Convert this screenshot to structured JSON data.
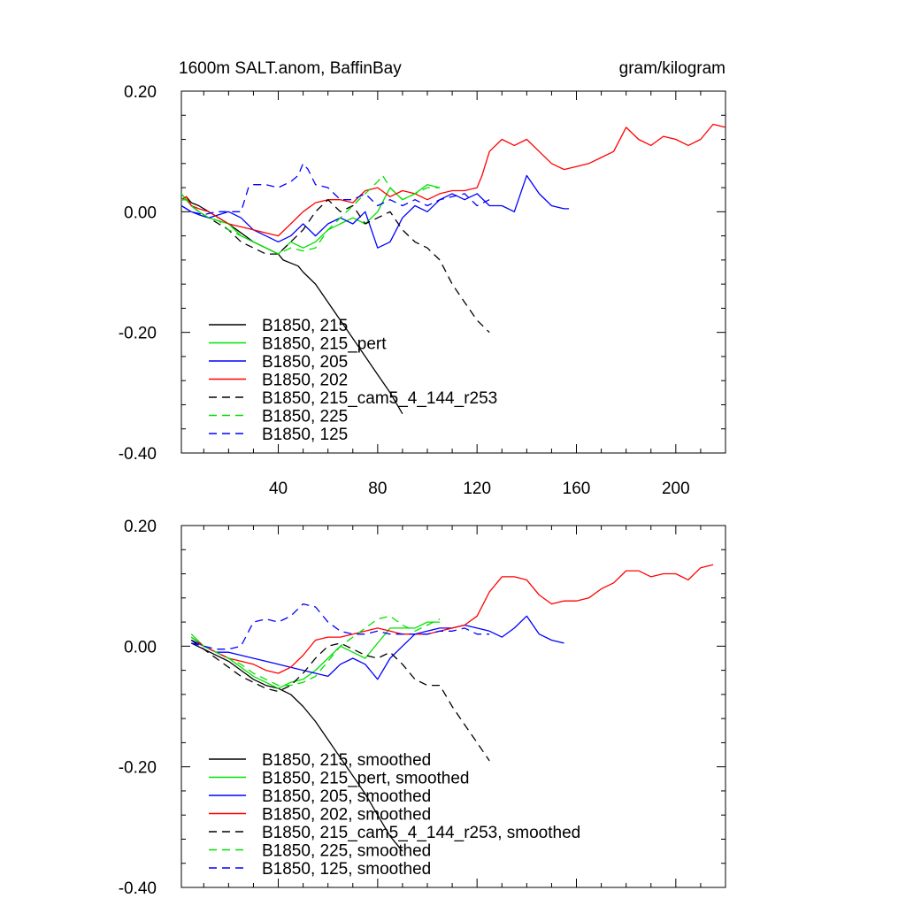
{
  "chart_data": [
    {
      "type": "line",
      "title_left": "1600m SALT.anom, BaffinBay",
      "title_right": "gram/kilogram",
      "xlabel": "",
      "ylabel": "",
      "xlim": [
        1,
        220
      ],
      "ylim": [
        -0.4,
        0.2
      ],
      "xticks": [
        40,
        80,
        120,
        160,
        200
      ],
      "xtick_labels": [
        "40",
        "80",
        "120",
        "160",
        "200"
      ],
      "yticks": [
        0.2,
        0.0,
        -0.2,
        -0.4
      ],
      "ytick_labels": [
        "0.20",
        "0.00",
        "-0.20",
        "-0.40"
      ],
      "series": [
        {
          "name": "B1850, 215",
          "color": "#000000",
          "dash": "solid",
          "x": [
            1,
            3,
            5,
            8,
            12,
            16,
            20,
            25,
            30,
            35,
            40,
            42,
            45,
            48,
            50,
            55,
            60,
            65,
            70,
            75,
            80,
            85,
            90
          ],
          "y": [
            0.02,
            0.025,
            0.015,
            0.01,
            0.0,
            -0.01,
            -0.02,
            -0.035,
            -0.05,
            -0.06,
            -0.07,
            -0.08,
            -0.085,
            -0.09,
            -0.1,
            -0.12,
            -0.15,
            -0.18,
            -0.21,
            -0.24,
            -0.27,
            -0.3,
            -0.335
          ]
        },
        {
          "name": "B1850, 215_pert",
          "color": "#00e000",
          "dash": "solid",
          "x": [
            1,
            3,
            5,
            8,
            12,
            16,
            20,
            25,
            30,
            35,
            40,
            45,
            50,
            55,
            60,
            65,
            70,
            75,
            80,
            85,
            90,
            95,
            100,
            105
          ],
          "y": [
            0.03,
            0.02,
            0.01,
            0.0,
            -0.01,
            -0.015,
            -0.02,
            -0.04,
            -0.05,
            -0.06,
            -0.07,
            -0.05,
            -0.06,
            -0.05,
            -0.03,
            -0.02,
            -0.01,
            -0.02,
            0.0,
            0.04,
            0.02,
            0.03,
            0.045,
            0.04
          ]
        },
        {
          "name": "B1850, 205",
          "color": "#0000ff",
          "dash": "solid",
          "x": [
            1,
            3,
            5,
            8,
            12,
            16,
            20,
            25,
            30,
            35,
            40,
            45,
            50,
            55,
            60,
            65,
            70,
            75,
            80,
            85,
            90,
            95,
            100,
            105,
            110,
            115,
            120,
            125,
            130,
            135,
            140,
            145,
            150,
            155,
            157
          ],
          "y": [
            0.01,
            0.005,
            0.0,
            -0.005,
            -0.01,
            -0.005,
            0.0,
            -0.01,
            -0.03,
            -0.04,
            -0.05,
            -0.04,
            -0.02,
            -0.04,
            -0.02,
            -0.01,
            -0.02,
            0.0,
            -0.06,
            -0.05,
            -0.01,
            0.01,
            0.0,
            0.02,
            0.03,
            0.02,
            0.03,
            0.01,
            0.01,
            0.0,
            0.06,
            0.03,
            0.01,
            0.005,
            0.005
          ]
        },
        {
          "name": "B1850, 202",
          "color": "#ff0000",
          "dash": "solid",
          "x": [
            1,
            3,
            5,
            8,
            12,
            16,
            20,
            25,
            30,
            35,
            40,
            45,
            50,
            55,
            60,
            65,
            70,
            75,
            80,
            85,
            90,
            95,
            100,
            105,
            110,
            115,
            120,
            122,
            125,
            130,
            135,
            140,
            145,
            150,
            155,
            160,
            165,
            170,
            175,
            180,
            185,
            190,
            195,
            200,
            205,
            210,
            215,
            220
          ],
          "y": [
            0.02,
            0.025,
            0.01,
            0.005,
            0.0,
            -0.01,
            -0.02,
            -0.025,
            -0.03,
            -0.035,
            -0.04,
            -0.02,
            0.0,
            0.015,
            0.02,
            0.02,
            0.015,
            0.035,
            0.04,
            0.025,
            0.035,
            0.03,
            0.02,
            0.03,
            0.035,
            0.035,
            0.04,
            0.06,
            0.1,
            0.12,
            0.11,
            0.12,
            0.1,
            0.08,
            0.07,
            0.075,
            0.08,
            0.09,
            0.1,
            0.14,
            0.12,
            0.11,
            0.125,
            0.12,
            0.11,
            0.12,
            0.145,
            0.14
          ]
        },
        {
          "name": "B1850, 215_cam5_4_144_r253",
          "color": "#000000",
          "dash": "dashed",
          "x": [
            1,
            3,
            5,
            8,
            12,
            16,
            20,
            25,
            30,
            35,
            40,
            45,
            50,
            55,
            60,
            65,
            70,
            75,
            80,
            85,
            90,
            95,
            100,
            105,
            110,
            115,
            120,
            125
          ],
          "y": [
            0.02,
            0.02,
            0.01,
            0.0,
            -0.01,
            -0.02,
            -0.03,
            -0.05,
            -0.06,
            -0.07,
            -0.07,
            -0.05,
            -0.03,
            0.0,
            0.02,
            0.0,
            0.01,
            -0.02,
            -0.01,
            0.0,
            -0.03,
            -0.05,
            -0.06,
            -0.08,
            -0.12,
            -0.15,
            -0.18,
            -0.2
          ]
        },
        {
          "name": "B1850, 225",
          "color": "#00e000",
          "dash": "dashed",
          "x": [
            1,
            3,
            5,
            8,
            12,
            16,
            20,
            25,
            30,
            35,
            40,
            45,
            50,
            55,
            60,
            65,
            70,
            75,
            80,
            82,
            85,
            90,
            95,
            100,
            105
          ],
          "y": [
            0.02,
            0.02,
            0.01,
            0.0,
            -0.01,
            -0.015,
            -0.03,
            -0.04,
            -0.05,
            -0.06,
            -0.07,
            -0.06,
            -0.065,
            -0.06,
            -0.03,
            -0.01,
            0.01,
            0.03,
            0.05,
            0.06,
            0.04,
            0.02,
            0.03,
            0.04,
            0.04
          ]
        },
        {
          "name": "B1850, 125",
          "color": "#0000ff",
          "dash": "dashed",
          "x": [
            1,
            5,
            10,
            15,
            20,
            25,
            28,
            30,
            35,
            40,
            45,
            48,
            50,
            52,
            55,
            60,
            65,
            70,
            75,
            80,
            85,
            90,
            95,
            100,
            105,
            110,
            115,
            120,
            125
          ],
          "y": [
            0.01,
            0.0,
            -0.005,
            0.0,
            0.0,
            0.0,
            0.04,
            0.045,
            0.045,
            0.04,
            0.05,
            0.06,
            0.08,
            0.07,
            0.045,
            0.04,
            0.02,
            0.02,
            0.03,
            0.01,
            0.02,
            0.01,
            0.02,
            0.01,
            0.02,
            0.025,
            0.03,
            0.01,
            0.02
          ]
        }
      ]
    },
    {
      "type": "line",
      "xlim": [
        1,
        220
      ],
      "ylim": [
        -0.4,
        0.2
      ],
      "yticks": [
        0.2,
        0.0,
        -0.2,
        -0.4
      ],
      "ytick_labels": [
        "0.20",
        "0.00",
        "-0.20",
        "-0.40"
      ],
      "series": [
        {
          "name": "B1850, 215, smoothed",
          "color": "#000000",
          "dash": "solid",
          "x": [
            5,
            10,
            15,
            20,
            25,
            30,
            35,
            40,
            45,
            50,
            55,
            60,
            65,
            70,
            75,
            80,
            85,
            90
          ],
          "y": [
            0.005,
            -0.005,
            -0.015,
            -0.025,
            -0.04,
            -0.055,
            -0.065,
            -0.07,
            -0.08,
            -0.1,
            -0.125,
            -0.155,
            -0.185,
            -0.215,
            -0.245,
            -0.28,
            -0.315,
            -0.34
          ]
        },
        {
          "name": "B1850, 215_pert, smoothed",
          "color": "#00e000",
          "dash": "solid",
          "x": [
            5,
            10,
            15,
            20,
            25,
            30,
            35,
            40,
            45,
            50,
            55,
            60,
            65,
            70,
            75,
            80,
            85,
            90,
            95,
            100,
            105
          ],
          "y": [
            0.02,
            0.0,
            -0.01,
            -0.02,
            -0.035,
            -0.05,
            -0.06,
            -0.07,
            -0.06,
            -0.055,
            -0.04,
            -0.02,
            0.0,
            -0.01,
            -0.02,
            0.005,
            0.03,
            0.03,
            0.03,
            0.04,
            0.04
          ]
        },
        {
          "name": "B1850, 205, smoothed",
          "color": "#0000ff",
          "dash": "solid",
          "x": [
            5,
            10,
            15,
            20,
            25,
            30,
            35,
            40,
            45,
            50,
            55,
            60,
            65,
            70,
            75,
            80,
            85,
            90,
            95,
            100,
            105,
            110,
            115,
            120,
            125,
            130,
            135,
            140,
            145,
            150,
            155
          ],
          "y": [
            0.01,
            0.0,
            -0.01,
            -0.01,
            -0.015,
            -0.02,
            -0.025,
            -0.03,
            -0.035,
            -0.04,
            -0.045,
            -0.05,
            -0.03,
            -0.02,
            -0.03,
            -0.055,
            -0.02,
            0.0,
            0.02,
            0.025,
            0.03,
            0.03,
            0.035,
            0.03,
            0.025,
            0.015,
            0.03,
            0.05,
            0.02,
            0.01,
            0.005
          ]
        },
        {
          "name": "B1850, 202, smoothed",
          "color": "#ff0000",
          "dash": "solid",
          "x": [
            5,
            10,
            15,
            20,
            25,
            30,
            35,
            40,
            45,
            50,
            55,
            60,
            65,
            70,
            75,
            80,
            85,
            90,
            95,
            100,
            105,
            110,
            115,
            120,
            125,
            130,
            135,
            140,
            145,
            150,
            155,
            160,
            165,
            170,
            175,
            180,
            185,
            190,
            195,
            200,
            205,
            210,
            215
          ],
          "y": [
            0.015,
            0.0,
            -0.01,
            -0.02,
            -0.025,
            -0.03,
            -0.04,
            -0.045,
            -0.035,
            -0.015,
            0.01,
            0.015,
            0.015,
            0.02,
            0.025,
            0.03,
            0.025,
            0.02,
            0.02,
            0.02,
            0.025,
            0.03,
            0.035,
            0.05,
            0.09,
            0.115,
            0.115,
            0.11,
            0.085,
            0.07,
            0.075,
            0.075,
            0.08,
            0.095,
            0.105,
            0.125,
            0.125,
            0.115,
            0.12,
            0.12,
            0.11,
            0.13,
            0.135
          ]
        },
        {
          "name": "B1850, 215_cam5_4_144_r253, smoothed",
          "color": "#000000",
          "dash": "dashed",
          "x": [
            5,
            10,
            15,
            20,
            25,
            30,
            35,
            40,
            45,
            50,
            55,
            60,
            65,
            70,
            75,
            80,
            85,
            90,
            95,
            100,
            105,
            110,
            115,
            120,
            125
          ],
          "y": [
            0.01,
            -0.005,
            -0.02,
            -0.035,
            -0.05,
            -0.06,
            -0.07,
            -0.075,
            -0.065,
            -0.045,
            -0.02,
            0.0,
            0.005,
            -0.005,
            -0.015,
            -0.02,
            -0.01,
            -0.03,
            -0.055,
            -0.065,
            -0.065,
            -0.1,
            -0.13,
            -0.16,
            -0.19
          ]
        },
        {
          "name": "B1850, 225, smoothed",
          "color": "#00e000",
          "dash": "dashed",
          "x": [
            5,
            10,
            15,
            20,
            25,
            30,
            35,
            40,
            45,
            50,
            55,
            60,
            65,
            70,
            75,
            80,
            85,
            90,
            95,
            100,
            105
          ],
          "y": [
            0.015,
            0.0,
            -0.01,
            -0.02,
            -0.03,
            -0.045,
            -0.055,
            -0.065,
            -0.065,
            -0.06,
            -0.05,
            -0.025,
            0.0,
            0.015,
            0.03,
            0.045,
            0.05,
            0.035,
            0.025,
            0.035,
            0.045
          ]
        },
        {
          "name": "B1850, 125, smoothed",
          "color": "#0000ff",
          "dash": "dashed",
          "x": [
            5,
            10,
            15,
            20,
            25,
            30,
            35,
            40,
            45,
            50,
            55,
            60,
            65,
            70,
            75,
            80,
            85,
            90,
            95,
            100,
            105,
            110,
            115,
            120,
            125
          ],
          "y": [
            0.005,
            0.0,
            -0.005,
            -0.005,
            0.0,
            0.04,
            0.045,
            0.04,
            0.05,
            0.07,
            0.065,
            0.04,
            0.025,
            0.02,
            0.02,
            0.025,
            0.02,
            0.02,
            0.02,
            0.02,
            0.025,
            0.025,
            0.03,
            0.02,
            0.02
          ]
        }
      ]
    }
  ]
}
